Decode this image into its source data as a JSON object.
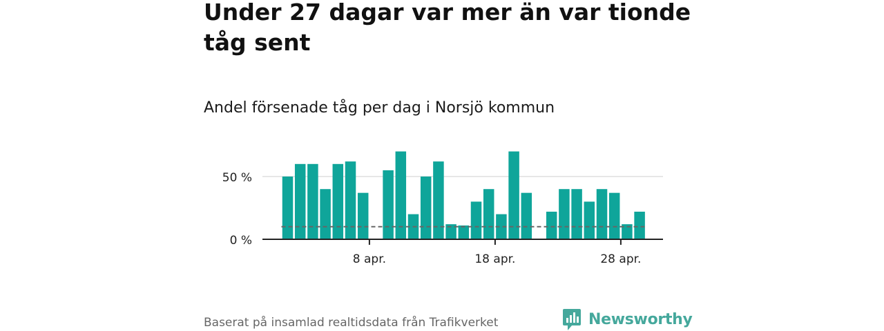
{
  "title": "Under 27 dagar var mer än var tionde tåg sent",
  "subtitle": "Andel försenade tåg per dag i Norsjö kommun",
  "footer": {
    "source": "Baserat på insamlad realtidsdata från Trafikverket",
    "brand": "Newsworthy"
  },
  "colors": {
    "bar": "#0fa59a",
    "threshold": "#666666",
    "grid": "#dddddd",
    "axis": "#222222",
    "brand": "#45a89c"
  },
  "chart_data": {
    "type": "bar",
    "title": "Andel försenade tåg per dag i Norsjö kommun",
    "xlabel": "",
    "ylabel": "",
    "ylim": [
      0,
      75
    ],
    "y_ticks": [
      {
        "value": 0,
        "label": "0 %"
      },
      {
        "value": 50,
        "label": "50 %"
      }
    ],
    "x_ticks": [
      {
        "day": 8,
        "label": "8 apr."
      },
      {
        "day": 18,
        "label": "18 apr."
      },
      {
        "day": 28,
        "label": "28 apr."
      }
    ],
    "grid": true,
    "threshold": {
      "value": 10,
      "style": "dashed",
      "from_day": 1,
      "to_day": 30
    },
    "days": [
      1,
      2,
      3,
      4,
      5,
      6,
      7,
      8,
      9,
      10,
      11,
      12,
      13,
      14,
      15,
      16,
      17,
      18,
      19,
      20,
      21,
      22,
      23,
      24,
      25,
      26,
      27,
      28,
      29,
      30
    ],
    "values": [
      50,
      60,
      60,
      40,
      60,
      62,
      37,
      null,
      55,
      70,
      20,
      50,
      62,
      12,
      11,
      30,
      40,
      20,
      70,
      37,
      null,
      22,
      40,
      40,
      30,
      40,
      37,
      12,
      22,
      null
    ]
  }
}
